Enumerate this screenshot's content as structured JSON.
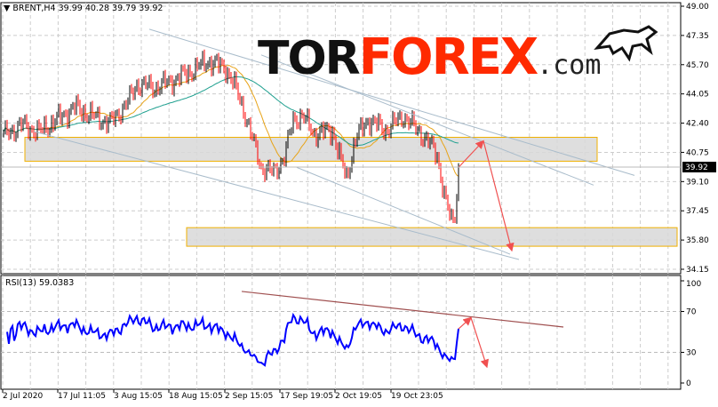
{
  "header": {
    "symbol_label": "BRENT,H4",
    "ohlc": "39.99 40.28 39.79 39.92",
    "menu_icon": "triangle-down-icon"
  },
  "logo": {
    "part1": "TOR",
    "part2": "FOREX",
    "part3": ".com",
    "icon": "bull-icon"
  },
  "rsi": {
    "label": "RSI(13) 59.0383"
  },
  "colors": {
    "up": "#000000",
    "down": "#ff0000",
    "ma_fast": "#e8a317",
    "ma_slow": "#20a090",
    "rsi": "#0000ff",
    "zone_fill": "#d8d8d8",
    "zone_border": "#f0b000",
    "channel": "#a9bccb",
    "arrow": "#f05050",
    "rsi_trend": "#a05050",
    "price_tag_bg": "#000000"
  },
  "chart_data": {
    "type": "candlestick",
    "price_axis": {
      "ticks": [
        "49.00",
        "47.35",
        "45.70",
        "44.05",
        "42.40",
        "40.75",
        "39.10",
        "37.45",
        "35.80",
        "34.15"
      ],
      "ylim": [
        34.15,
        49.0
      ],
      "current_price": "39.92"
    },
    "time_axis": {
      "ticks": [
        "2 Jul 2020",
        "17 Jul 11:05",
        "3 Aug 15:05",
        "18 Aug 15:05",
        "2 Sep 15:05",
        "17 Sep 19:05",
        "2 Oct 19:05",
        "19 Oct 23:05"
      ]
    },
    "rsi_axis": {
      "ticks": [
        "100",
        "70",
        "30",
        "0"
      ],
      "ylim": [
        0,
        100
      ],
      "levels": [
        70,
        30
      ],
      "period": 13
    },
    "grid": true,
    "close_path_bar_price": [
      [
        0,
        41.7
      ],
      [
        10,
        42.3
      ],
      [
        20,
        41.9
      ],
      [
        30,
        42.6
      ],
      [
        40,
        43.3
      ],
      [
        50,
        42.8
      ],
      [
        60,
        42.4
      ],
      [
        70,
        43.6
      ],
      [
        75,
        44.6
      ],
      [
        85,
        44.4
      ],
      [
        95,
        44.8
      ],
      [
        105,
        45.3
      ],
      [
        115,
        45.9
      ],
      [
        125,
        45.5
      ],
      [
        130,
        44.5
      ],
      [
        135,
        43.2
      ],
      [
        140,
        41.5
      ],
      [
        145,
        39.9
      ],
      [
        152,
        39.6
      ],
      [
        158,
        40.5
      ],
      [
        163,
        42.6
      ],
      [
        168,
        42.8
      ],
      [
        175,
        41.8
      ],
      [
        185,
        42.0
      ],
      [
        190,
        40.2
      ],
      [
        193,
        39.3
      ],
      [
        198,
        41.5
      ],
      [
        205,
        42.6
      ],
      [
        215,
        42.0
      ],
      [
        225,
        42.8
      ],
      [
        235,
        41.8
      ],
      [
        240,
        41.2
      ],
      [
        244,
        40.6
      ],
      [
        248,
        38.3
      ],
      [
        252,
        36.8
      ],
      [
        254,
        37.3
      ],
      [
        256,
        39.9
      ]
    ],
    "moving_averages": [
      {
        "color_key": "ma_fast",
        "period": 20
      },
      {
        "color_key": "ma_slow",
        "period": 60
      }
    ],
    "zones": [
      {
        "bar_from": 12,
        "bar_to": 334,
        "price_top": 41.6,
        "price_bottom": 40.25
      },
      {
        "bar_from": 103,
        "bar_to": 379,
        "price_top": 36.5,
        "price_bottom": 35.45
      }
    ],
    "trendlines": [
      {
        "bar1": 82,
        "price1": 47.7,
        "bar2": 355,
        "price2": 39.45
      },
      {
        "bar1": 145,
        "price1": 46.25,
        "bar2": 332,
        "price2": 38.9
      },
      {
        "bar1": 17,
        "price1": 41.93,
        "bar2": 290,
        "price2": 34.7
      },
      {
        "bar1": 165,
        "price1": 39.9,
        "bar2": 285,
        "price2": 35.0
      }
    ],
    "arrows": [
      {
        "bar1": 256,
        "price1": 39.9,
        "bar2": 270,
        "price2": 41.4
      },
      {
        "bar1": 270,
        "price1": 41.4,
        "bar2": 286,
        "price2": 35.2
      }
    ],
    "rsi_trendline": {
      "bar1": 134,
      "value1": 89.6,
      "bar2": 315,
      "value2": 54.8
    },
    "rsi_arrows": [
      {
        "bar1": 256,
        "value1": 53,
        "bar2": 263,
        "value2": 64
      },
      {
        "bar1": 263,
        "value1": 64,
        "bar2": 272,
        "value2": 15.6
      }
    ]
  }
}
